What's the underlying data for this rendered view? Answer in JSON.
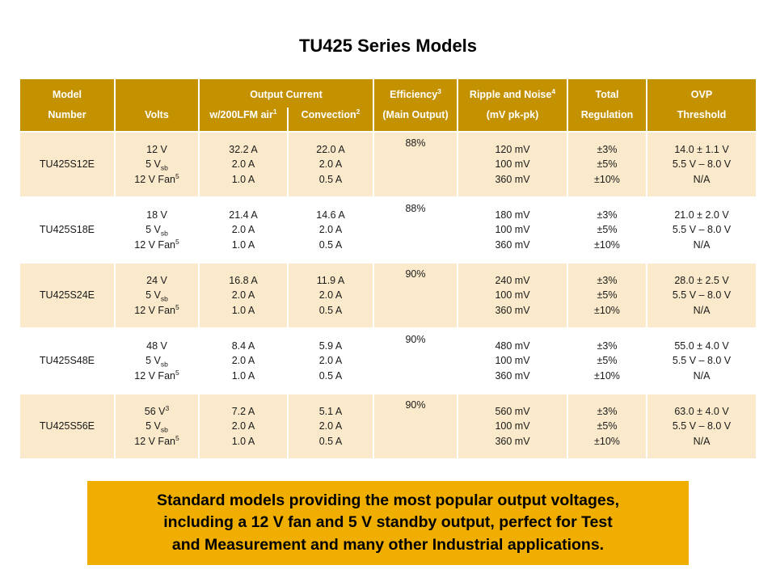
{
  "title": "TU425 Series Models",
  "colors": {
    "header_bg": "#C49200",
    "row_alt_bg": "#FAEACB",
    "banner_bg": "#F0AF00"
  },
  "table": {
    "header": {
      "row1": {
        "model": "Model",
        "spacer": "",
        "output_current": "Output Current",
        "efficiency": "Efficiency<sup>3</sup>",
        "ripple": "Ripple and Noise<sup>4</sup>",
        "total": "Total",
        "ovp": "OVP"
      },
      "row2": {
        "number": "Number",
        "volts": "Volts",
        "air": "w/200LFM air<sup>1</sup>",
        "convection": "Convection<sup>2</sup>",
        "main_output": "(Main Output)",
        "mv_pkpk": "(mV  pk-pk)",
        "regulation": "Regulation",
        "threshold": "Threshold"
      }
    },
    "rows": [
      {
        "model": "TU425S12E",
        "volts": "12 V<br>5 V<sub>sb</sub><br>12 V Fan<sup>5</sup>",
        "air": "32.2 A<br>2.0 A<br>1.0 A",
        "convection": "22.0 A<br>2.0 A<br>0.5 A",
        "efficiency": "88%",
        "ripple": "120 mV<br>100 mV<br>360 mV",
        "regulation": "±3%<br>±5%<br>±10%",
        "ovp": "14.0 ± 1.1 V<br>5.5 V – 8.0 V<br>N/A"
      },
      {
        "model": "TU425S18E",
        "volts": "18 V<br>5 V<sub>sb</sub><br>12 V Fan<sup>5</sup>",
        "air": "21.4 A<br>2.0 A<br>1.0 A",
        "convection": "14.6 A<br>2.0 A<br>0.5 A",
        "efficiency": "88%",
        "ripple": "180 mV<br>100 mV<br>360 mV",
        "regulation": "±3%<br>±5%<br>±10%",
        "ovp": "21.0 ± 2.0 V<br>5.5 V – 8.0 V<br>N/A"
      },
      {
        "model": "TU425S24E",
        "volts": "24 V<br>5 V<sub>sb</sub><br>12 V Fan<sup>5</sup>",
        "air": "16.8 A<br>2.0 A<br>1.0 A",
        "convection": "11.9 A<br>2.0 A<br>0.5 A",
        "efficiency": "90%",
        "ripple": "240 mV<br>100 mV<br>360 mV",
        "regulation": "±3%<br>±5%<br>±10%",
        "ovp": "28.0 ± 2.5 V<br>5.5 V – 8.0 V<br>N/A"
      },
      {
        "model": "TU425S48E",
        "volts": "48 V<br>5 V<sub>sb</sub><br>12 V Fan<sup>5</sup>",
        "air": "8.4 A<br>2.0 A<br>1.0 A",
        "convection": "5.9 A<br>2.0 A<br>0.5 A",
        "efficiency": "90%",
        "ripple": "480 mV<br>100 mV<br>360 mV",
        "regulation": "±3%<br>±5%<br>±10%",
        "ovp": "55.0 ± 4.0 V<br>5.5 V – 8.0 V<br>N/A"
      },
      {
        "model": "TU425S56E",
        "volts": "56 V<sup>3</sup><br>5 V<sub>sb</sub><br>12 V Fan<sup>5</sup>",
        "air": "7.2 A<br>2.0 A<br>1.0 A",
        "convection": "5.1 A<br>2.0 A<br>0.5 A",
        "efficiency": "90%",
        "ripple": "560 mV<br>100 mV<br>360 mV",
        "regulation": "±3%<br>±5%<br>±10%",
        "ovp": "63.0 ± 4.0 V<br>5.5 V – 8.0 V<br>N/A"
      }
    ]
  },
  "banner": {
    "html": "Standard models providing the most popular output voltages,<br>including a 12 V fan and 5 V standby output, perfect for Test<br>and Measurement and many other Industrial applications."
  }
}
